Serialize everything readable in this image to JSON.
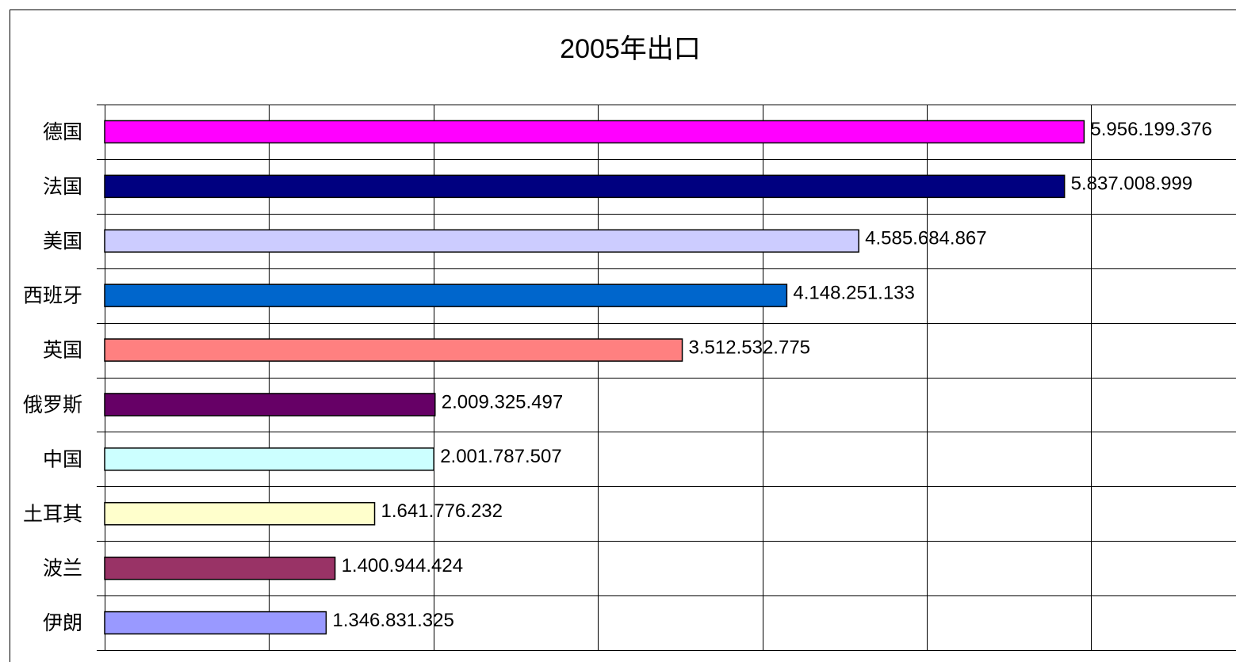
{
  "chart_data": {
    "type": "bar",
    "orientation": "horizontal",
    "title": "2005年出口",
    "categories": [
      "德国",
      "法国",
      "美国",
      "西班牙",
      "英国",
      "俄罗斯",
      "中国",
      "土耳其",
      "波兰",
      "伊朗"
    ],
    "values": [
      5956199376,
      5837008999,
      4585684867,
      4148251133,
      3512532775,
      2009325497,
      2001787507,
      1641776232,
      1400944424,
      1346831325
    ],
    "value_labels": [
      "5.956.199.376",
      "5.837.008.999",
      "4.585.684.867",
      "4.148.251.133",
      "3.512.532.775",
      "2.009.325.497",
      "2.001.787.507",
      "1.641.776.232",
      "1.400.944.424",
      "1.346.831.325"
    ],
    "colors": [
      "#ff00ff",
      "#000080",
      "#ccccff",
      "#0066cc",
      "#ff8080",
      "#660066",
      "#ccffff",
      "#ffffcc",
      "#993366",
      "#9999ff"
    ],
    "xlim": [
      0,
      6880000000
    ],
    "xticks": [
      0,
      1000000000,
      2000000000,
      3000000000,
      4000000000,
      5000000000,
      6000000000
    ],
    "grid": true
  }
}
